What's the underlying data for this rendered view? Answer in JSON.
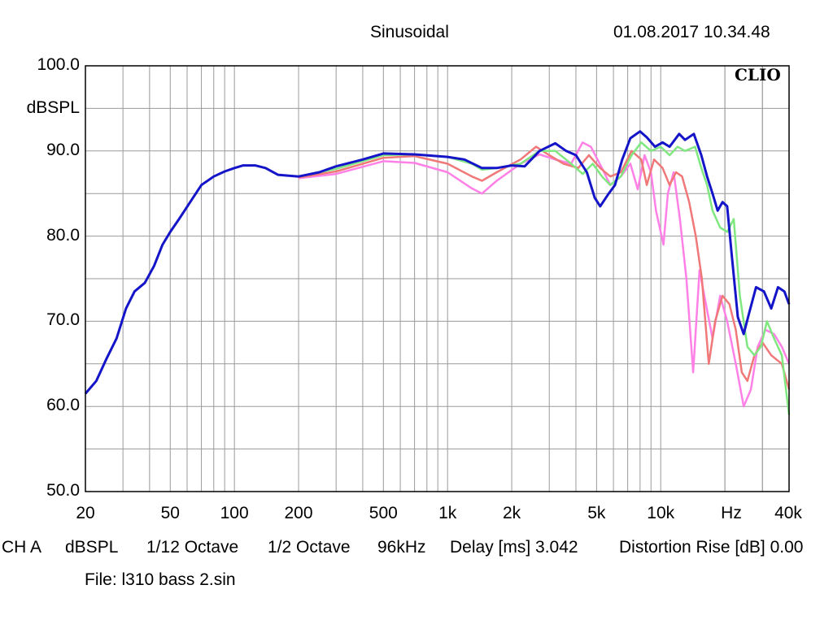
{
  "header": {
    "title": "Sinusoidal",
    "datetime": "01.08.2017 10.34.48",
    "brand": "CLIO"
  },
  "footer": {
    "line1": {
      "channel": "CH A",
      "unit": "dBSPL",
      "smoothing": "1/12 Octave",
      "resolution": "1/2 Octave",
      "sample_rate": "96kHz",
      "delay": "Delay [ms] 3.042",
      "distortion": "Distortion Rise [dB] 0.00"
    },
    "file": "File: l310 bass 2.sin"
  },
  "chart_data": {
    "type": "line",
    "x_scale": "log",
    "xlim": [
      20,
      40000
    ],
    "ylim": [
      50,
      100
    ],
    "ylabel": "dBSPL",
    "xlabel": "Hz",
    "grid": true,
    "y_ticks": [
      {
        "value": 100,
        "label": "100.0"
      },
      {
        "value": 90,
        "label": "90.0"
      },
      {
        "value": 80,
        "label": "80.0"
      },
      {
        "value": 70,
        "label": "70.0"
      },
      {
        "value": 60,
        "label": "60.0"
      },
      {
        "value": 50,
        "label": "50.0"
      }
    ],
    "x_ticks": [
      {
        "value": 20,
        "label": "20"
      },
      {
        "value": 50,
        "label": "50"
      },
      {
        "value": 100,
        "label": "100"
      },
      {
        "value": 200,
        "label": "200"
      },
      {
        "value": 500,
        "label": "500"
      },
      {
        "value": 1000,
        "label": "1k"
      },
      {
        "value": 2000,
        "label": "2k"
      },
      {
        "value": 5000,
        "label": "5k"
      },
      {
        "value": 10000,
        "label": "10k"
      },
      {
        "value": 40000,
        "label": "40k"
      }
    ],
    "series": [
      {
        "color": "#ff80e6",
        "points": [
          [
            200,
            86.8
          ],
          [
            300,
            87.3
          ],
          [
            500,
            88.8
          ],
          [
            700,
            88.6
          ],
          [
            1000,
            87.5
          ],
          [
            1300,
            85.6
          ],
          [
            1450,
            85.0
          ],
          [
            1700,
            86.5
          ],
          [
            2200,
            88.5
          ],
          [
            2700,
            89.6
          ],
          [
            3200,
            89.0
          ],
          [
            3800,
            88.5
          ],
          [
            4300,
            91.0
          ],
          [
            4700,
            90.5
          ],
          [
            5300,
            88.0
          ],
          [
            5800,
            86.0
          ],
          [
            6500,
            87.0
          ],
          [
            7200,
            88.5
          ],
          [
            7800,
            85.5
          ],
          [
            8400,
            89.5
          ],
          [
            9000,
            87.5
          ],
          [
            9500,
            83.0
          ],
          [
            10300,
            79.0
          ],
          [
            10800,
            85.0
          ],
          [
            11500,
            87.5
          ],
          [
            12300,
            82.0
          ],
          [
            13200,
            75.0
          ],
          [
            14200,
            64.0
          ],
          [
            15200,
            76.0
          ],
          [
            16300,
            72.0
          ],
          [
            17500,
            68.0
          ],
          [
            19000,
            73.0
          ],
          [
            20500,
            70.0
          ],
          [
            22500,
            65.0
          ],
          [
            24500,
            60.0
          ],
          [
            26500,
            62.0
          ],
          [
            28500,
            67.0
          ],
          [
            31000,
            69.0
          ],
          [
            34000,
            68.5
          ],
          [
            37000,
            67.0
          ],
          [
            40000,
            65.0
          ]
        ]
      },
      {
        "color": "#f07878",
        "points": [
          [
            200,
            86.9
          ],
          [
            300,
            87.6
          ],
          [
            500,
            89.2
          ],
          [
            700,
            89.4
          ],
          [
            1000,
            88.5
          ],
          [
            1300,
            87.0
          ],
          [
            1450,
            86.5
          ],
          [
            1700,
            87.5
          ],
          [
            2200,
            89.0
          ],
          [
            2600,
            90.5
          ],
          [
            3000,
            89.5
          ],
          [
            3500,
            88.5
          ],
          [
            4100,
            88.0
          ],
          [
            4600,
            89.5
          ],
          [
            5200,
            88.0
          ],
          [
            5800,
            87.0
          ],
          [
            6500,
            87.5
          ],
          [
            7300,
            90.0
          ],
          [
            8100,
            89.0
          ],
          [
            8600,
            86.0
          ],
          [
            9300,
            89.0
          ],
          [
            10200,
            88.0
          ],
          [
            11000,
            86.0
          ],
          [
            11800,
            87.5
          ],
          [
            12600,
            87.0
          ],
          [
            13600,
            84.0
          ],
          [
            14600,
            80.0
          ],
          [
            15600,
            75.0
          ],
          [
            16800,
            65.0
          ],
          [
            18000,
            70.0
          ],
          [
            19500,
            73.0
          ],
          [
            21000,
            72.0
          ],
          [
            22500,
            69.0
          ],
          [
            24000,
            64.0
          ],
          [
            25500,
            63.0
          ],
          [
            27500,
            66.0
          ],
          [
            30000,
            67.5
          ],
          [
            33000,
            66.0
          ],
          [
            37000,
            65.0
          ],
          [
            40000,
            62.0
          ]
        ]
      },
      {
        "color": "#80e880",
        "points": [
          [
            200,
            87.0
          ],
          [
            300,
            87.9
          ],
          [
            500,
            89.5
          ],
          [
            700,
            89.6
          ],
          [
            1000,
            89.3
          ],
          [
            1300,
            88.5
          ],
          [
            1450,
            87.8
          ],
          [
            1700,
            88.0
          ],
          [
            2200,
            88.5
          ],
          [
            2700,
            90.0
          ],
          [
            3200,
            90.0
          ],
          [
            3800,
            88.5
          ],
          [
            4300,
            87.3
          ],
          [
            4800,
            88.5
          ],
          [
            5300,
            87.0
          ],
          [
            5800,
            86.0
          ],
          [
            6500,
            87.0
          ],
          [
            7300,
            89.5
          ],
          [
            8100,
            91.0
          ],
          [
            9000,
            90.0
          ],
          [
            10000,
            90.5
          ],
          [
            11000,
            89.5
          ],
          [
            12000,
            90.5
          ],
          [
            13000,
            90.0
          ],
          [
            14500,
            90.5
          ],
          [
            15500,
            88.0
          ],
          [
            16500,
            86.0
          ],
          [
            17500,
            83.0
          ],
          [
            19000,
            81.0
          ],
          [
            20500,
            80.5
          ],
          [
            22000,
            82.0
          ],
          [
            23500,
            73.0
          ],
          [
            25500,
            67.0
          ],
          [
            27500,
            66.0
          ],
          [
            29500,
            67.0
          ],
          [
            31500,
            70.0
          ],
          [
            34000,
            68.0
          ],
          [
            37000,
            66.0
          ],
          [
            40000,
            59.0
          ]
        ]
      },
      {
        "color": "#1414c8",
        "points": [
          [
            20,
            61.5
          ],
          [
            22.5,
            63.0
          ],
          [
            25,
            65.5
          ],
          [
            28,
            68.0
          ],
          [
            31,
            71.5
          ],
          [
            34,
            73.5
          ],
          [
            38,
            74.5
          ],
          [
            42,
            76.5
          ],
          [
            46,
            79.0
          ],
          [
            50,
            80.5
          ],
          [
            55,
            82.0
          ],
          [
            62,
            84.0
          ],
          [
            70,
            86.0
          ],
          [
            80,
            87.0
          ],
          [
            90,
            87.6
          ],
          [
            100,
            88.0
          ],
          [
            110,
            88.3
          ],
          [
            125,
            88.3
          ],
          [
            140,
            88.0
          ],
          [
            160,
            87.2
          ],
          [
            200,
            87.0
          ],
          [
            250,
            87.5
          ],
          [
            300,
            88.2
          ],
          [
            400,
            89.0
          ],
          [
            500,
            89.7
          ],
          [
            700,
            89.6
          ],
          [
            1000,
            89.3
          ],
          [
            1200,
            89.0
          ],
          [
            1450,
            88.0
          ],
          [
            1700,
            88.0
          ],
          [
            2000,
            88.3
          ],
          [
            2300,
            88.2
          ],
          [
            2700,
            90.0
          ],
          [
            3200,
            90.9
          ],
          [
            3600,
            90.0
          ],
          [
            4000,
            89.5
          ],
          [
            4500,
            87.5
          ],
          [
            4900,
            84.5
          ],
          [
            5200,
            83.5
          ],
          [
            5700,
            85.0
          ],
          [
            6100,
            86.0
          ],
          [
            6600,
            89.0
          ],
          [
            7200,
            91.5
          ],
          [
            8000,
            92.3
          ],
          [
            8600,
            91.6
          ],
          [
            9400,
            90.5
          ],
          [
            10200,
            91.0
          ],
          [
            11000,
            90.5
          ],
          [
            12200,
            92.0
          ],
          [
            13000,
            91.3
          ],
          [
            14300,
            92.0
          ],
          [
            15500,
            89.5
          ],
          [
            16500,
            87.0
          ],
          [
            17500,
            85.0
          ],
          [
            18500,
            83.0
          ],
          [
            19500,
            84.0
          ],
          [
            20500,
            83.5
          ],
          [
            21500,
            78.0
          ],
          [
            23000,
            70.5
          ],
          [
            24500,
            68.5
          ],
          [
            26000,
            71.0
          ],
          [
            28000,
            74.0
          ],
          [
            30500,
            73.5
          ],
          [
            33000,
            71.5
          ],
          [
            35500,
            74.0
          ],
          [
            38000,
            73.5
          ],
          [
            40000,
            72.0
          ]
        ]
      }
    ]
  }
}
